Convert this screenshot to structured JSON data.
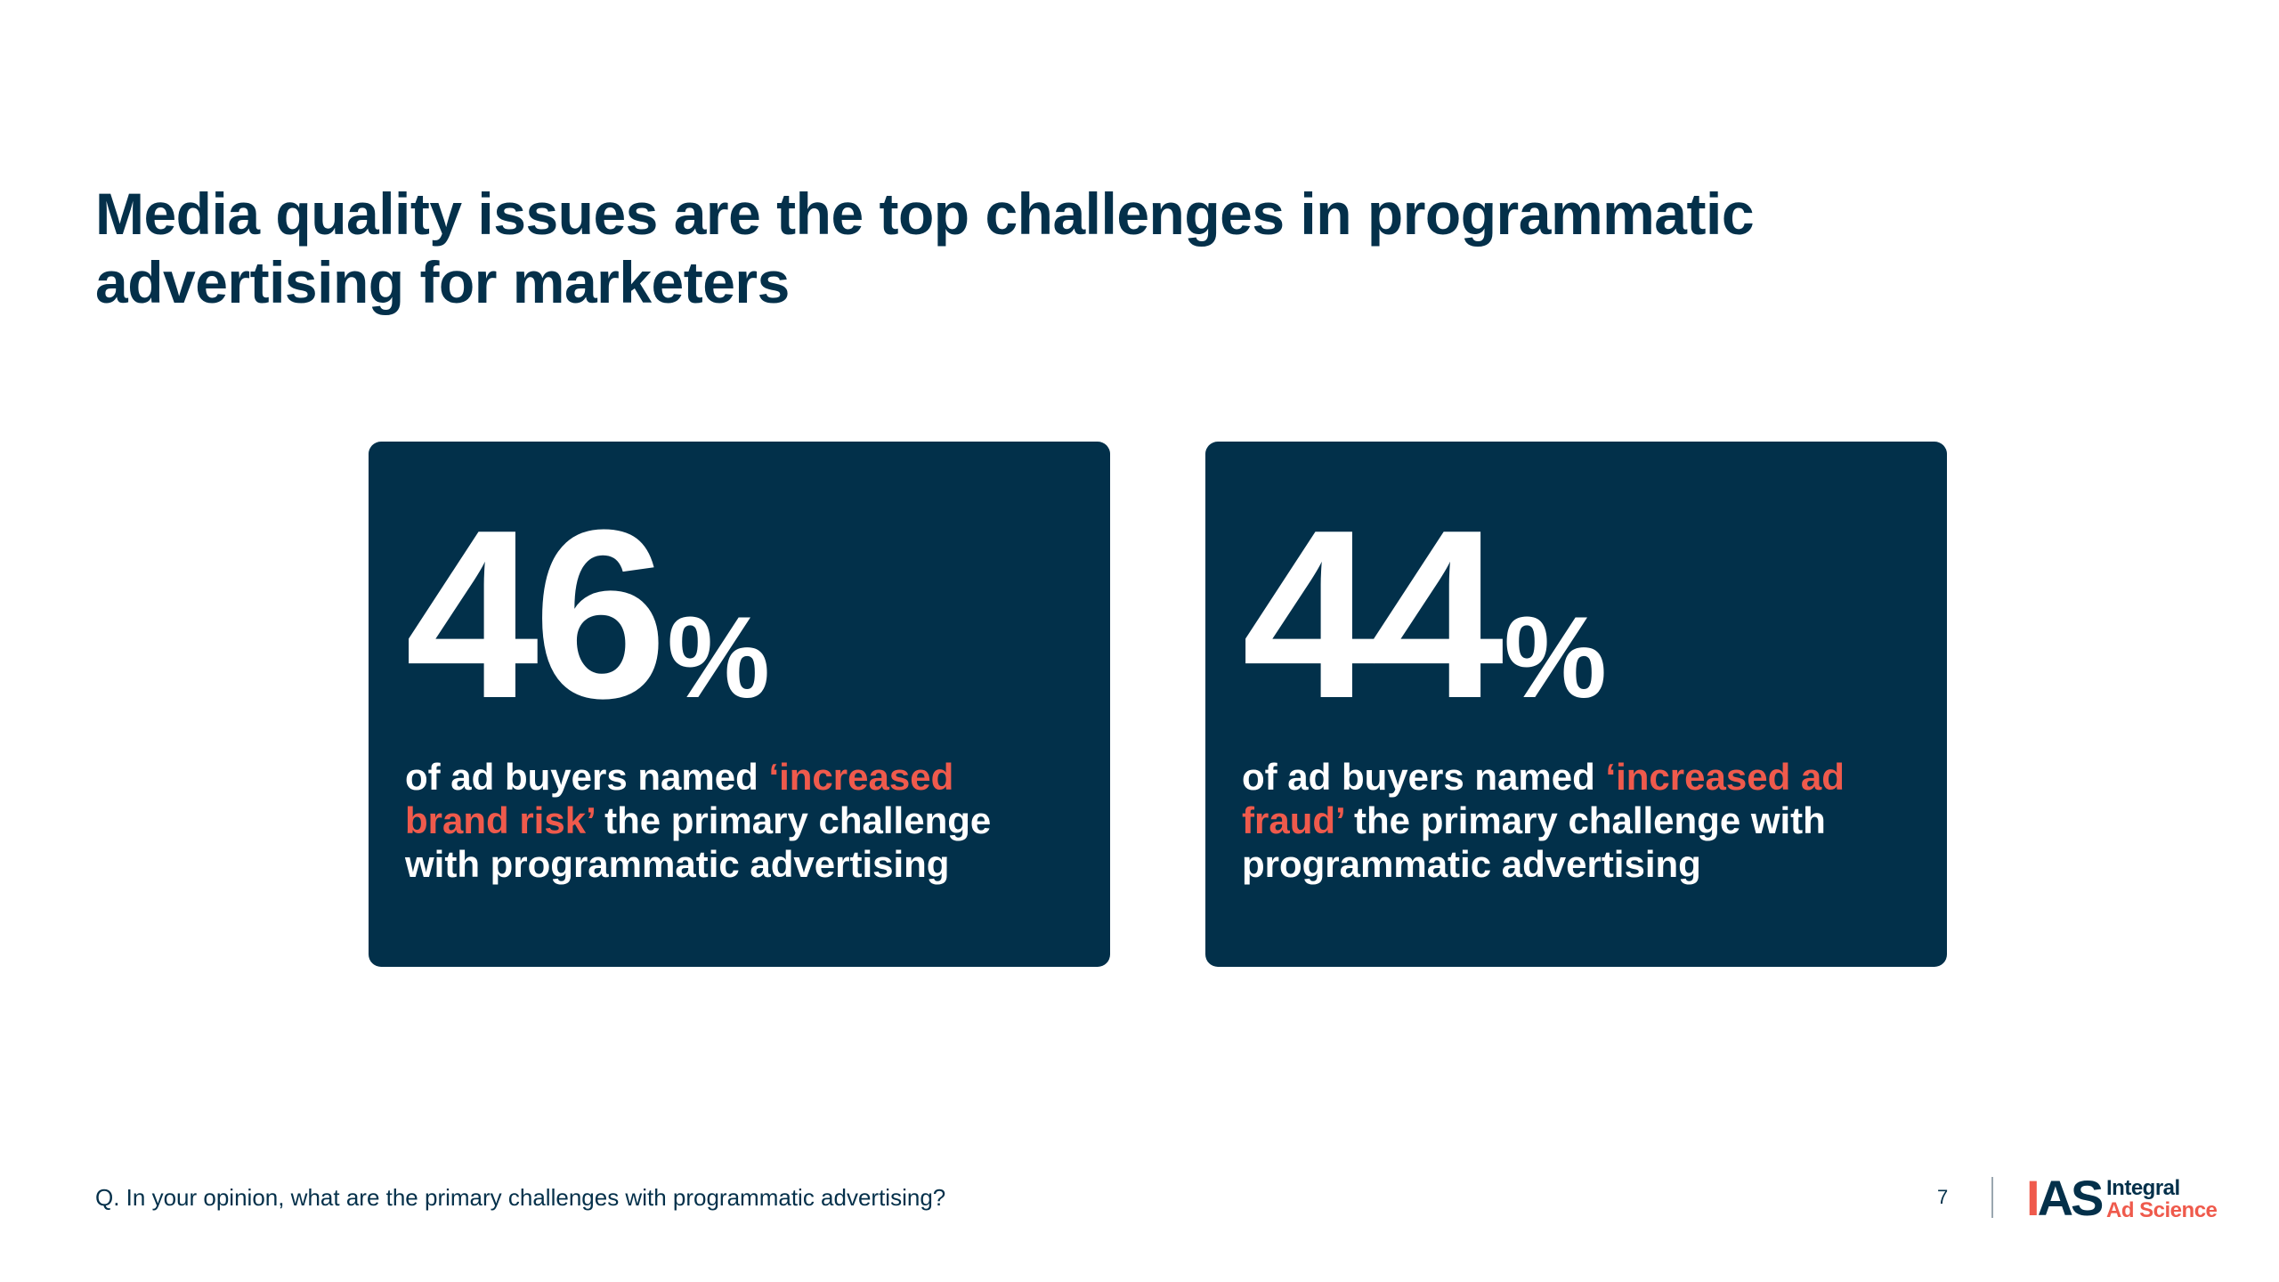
{
  "title": "Media quality issues are the top challenges in programmatic advertising for marketers",
  "cards": [
    {
      "number": "46",
      "percent": "%",
      "desc_before": "of ad buyers named ",
      "desc_highlight": "‘increased brand risk’",
      "desc_after": " the primary challenge with programmatic advertising"
    },
    {
      "number": "44",
      "percent": "%",
      "desc_before": "of ad buyers named ",
      "desc_highlight": "‘increased ad fraud’",
      "desc_after": " the primary challenge with programmatic advertising"
    }
  ],
  "footnote": "Q. In your opinion, what are the primary challenges with programmatic advertising?",
  "page_number": "7",
  "logo": {
    "mark_i": "I",
    "mark_rest": "AS",
    "line1": "Integral",
    "line2": "Ad Science"
  },
  "colors": {
    "navy": "#02304a",
    "accent": "#ef5a4c",
    "background": "#ffffff"
  }
}
